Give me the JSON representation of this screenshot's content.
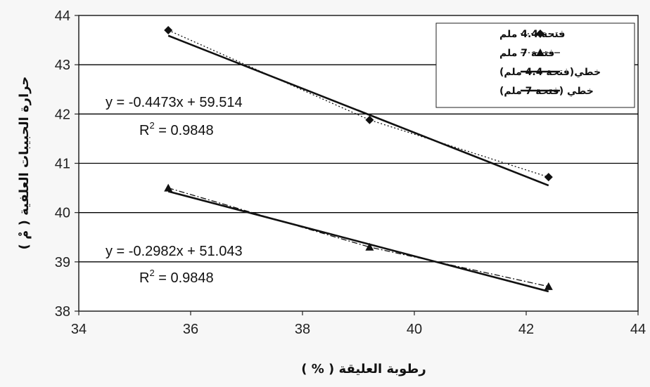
{
  "chart_data": {
    "type": "line",
    "xlabel": "رطوبة العليقة ( % )",
    "ylabel": "حرارة الحبيبات العلفية ( مْ )",
    "xlim": [
      34,
      44
    ],
    "ylim": [
      38,
      44
    ],
    "x_ticks": [
      "34",
      "36",
      "38",
      "40",
      "42",
      "44"
    ],
    "y_ticks": [
      "38",
      "39",
      "40",
      "41",
      "42",
      "43",
      "44"
    ],
    "grid": "horizontal",
    "legend_position": "top-right",
    "series": [
      {
        "name": "فتحة 4.4 ملم",
        "style": "dotted",
        "marker": "diamond",
        "color": "#111111",
        "x": [
          35.6,
          39.2,
          42.4
        ],
        "y": [
          43.7,
          41.88,
          40.72
        ]
      },
      {
        "name": "فتحة 7 ملم",
        "style": "dashdot",
        "marker": "triangle",
        "color": "#111111",
        "x": [
          35.6,
          39.2,
          42.4
        ],
        "y": [
          40.5,
          39.3,
          38.5
        ]
      },
      {
        "name": "خطي(فتحة 4.4 ملم)",
        "style": "solid",
        "marker": "none",
        "color": "#111111",
        "x": [
          35.6,
          42.4
        ],
        "y": [
          43.59,
          40.55
        ]
      },
      {
        "name": "خطي (فتحة 7 ملم)",
        "style": "solid",
        "marker": "none",
        "color": "#111111",
        "x": [
          35.6,
          42.4
        ],
        "y": [
          40.43,
          38.4
        ]
      }
    ],
    "annotations": [
      {
        "equation": "y = -0.4473x + 59.514",
        "r2_label": "R",
        "r2_sup": "2",
        "r2_value": " = 0.9848"
      },
      {
        "equation": "y = -0.2982x + 51.043",
        "r2_label": "R",
        "r2_sup": "2",
        "r2_value": " = 0.9848"
      }
    ]
  }
}
